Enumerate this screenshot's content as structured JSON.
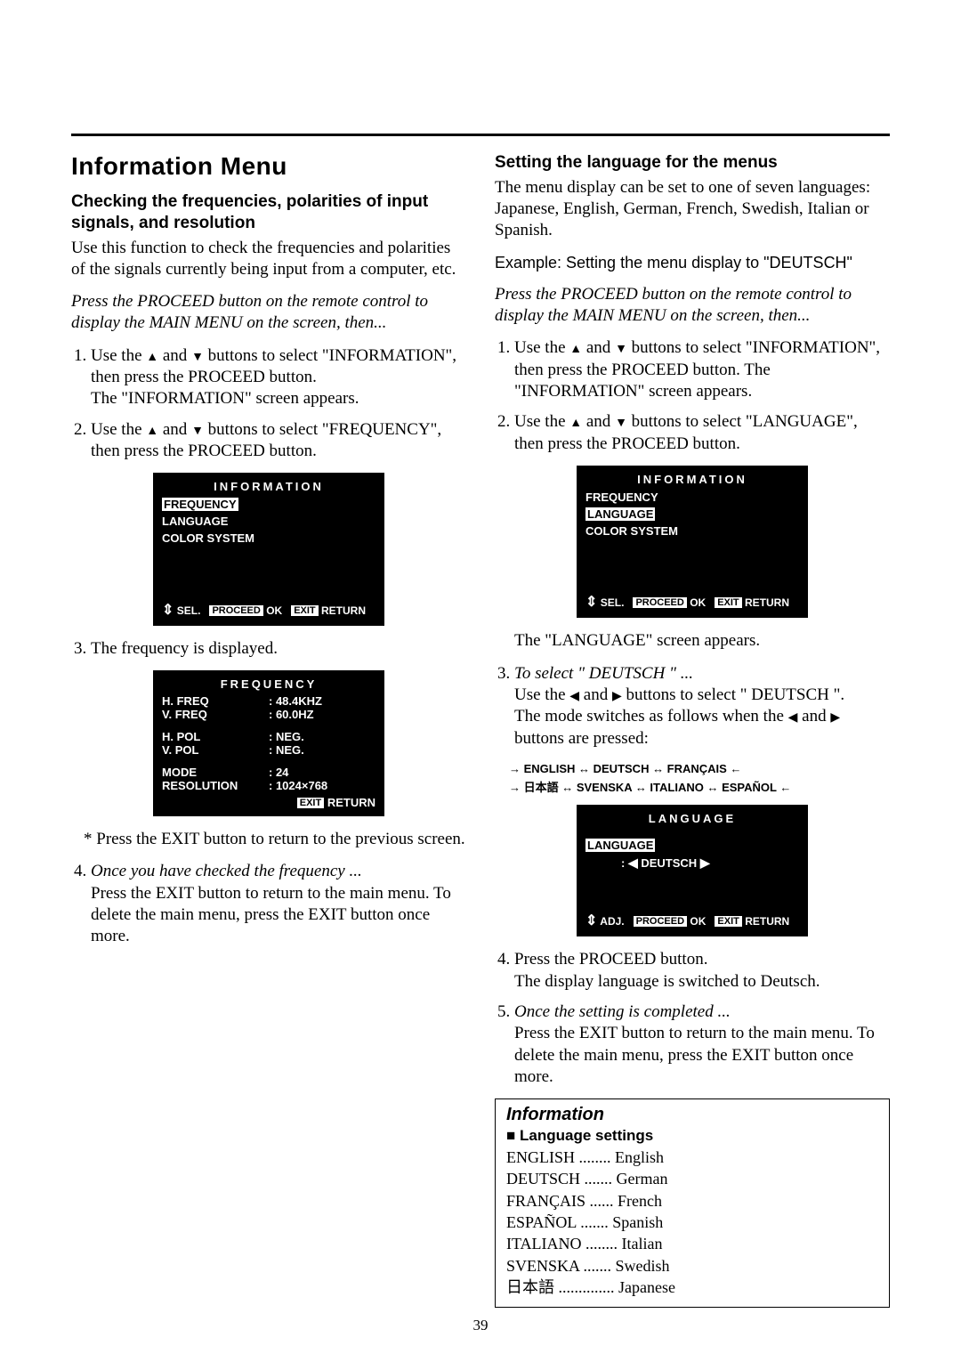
{
  "page_number": "39",
  "left": {
    "h_main": "Information Menu",
    "h_sub": "Checking the frequencies, polarities of input signals, and resolution",
    "intro": "Use this function to check the frequencies and polarities of the signals currently being input from a computer, etc.",
    "press_proceed": "Press the PROCEED button on the remote control to display the MAIN MENU on the screen, then...",
    "step1_a": "Use the ",
    "step1_b": " and ",
    "step1_c": " buttons to select \"INFORMATION\", then press the PROCEED button.",
    "step1_d": "The \"INFORMATION\" screen appears.",
    "step2_a": "Use the ",
    "step2_b": " and ",
    "step2_c": " buttons to select \"FREQUENCY\", then press the PROCEED button.",
    "osd1": {
      "title": "INFORMATION",
      "items": [
        "FREQUENCY",
        "LANGUAGE",
        "COLOR SYSTEM"
      ],
      "highlight_index": 0,
      "footer_sel": "SEL.",
      "footer_proceed": "PROCEED",
      "footer_ok": "OK",
      "footer_exit": "EXIT",
      "footer_return": "RETURN"
    },
    "step3": "The frequency is displayed.",
    "osd_freq": {
      "title": "FREQUENCY",
      "rows": [
        {
          "lab": "H. FREQ",
          "val": "48.4KHZ"
        },
        {
          "lab": "V. FREQ",
          "val": "60.0HZ"
        }
      ],
      "rows2": [
        {
          "lab": "H. POL",
          "val": "NEG."
        },
        {
          "lab": "V. POL",
          "val": "NEG."
        }
      ],
      "rows3": [
        {
          "lab": "MODE",
          "val": "24"
        },
        {
          "lab": "RESOLUTION",
          "val": "1024×768"
        }
      ],
      "exit": "EXIT",
      "return": "RETURN"
    },
    "note_exit": "* Press the EXIT button to return to the previous screen.",
    "step4_title": "Once you have checked the frequency ...",
    "step4_body": "Press the EXIT button to return to the main menu. To delete the main menu, press the EXIT button once more."
  },
  "right": {
    "h_sub": "Setting the language for the menus",
    "intro": "The menu display can be set to one of seven languages: Japanese, English, German, French, Swedish, Italian or Spanish.",
    "example": "Example: Setting the menu display to \"DEUTSCH\"",
    "press_proceed": "Press the PROCEED button on the remote control to display the MAIN MENU on the screen, then...",
    "step1_a": "Use the ",
    "step1_b": " and ",
    "step1_c": " buttons to select \"INFORMATION\", then press the PROCEED button. The \"INFORMATION\" screen appears.",
    "step2_a": "Use the ",
    "step2_b": " and ",
    "step2_c": " buttons to select \"LANGUAGE\", then press the PROCEED button.",
    "osd1": {
      "title": "INFORMATION",
      "items": [
        "FREQUENCY",
        "LANGUAGE",
        "COLOR SYSTEM"
      ],
      "highlight_index": 1,
      "footer_sel": "SEL.",
      "footer_proceed": "PROCEED",
      "footer_ok": "OK",
      "footer_exit": "EXIT",
      "footer_return": "RETURN"
    },
    "after_osd1": "The \"LANGUAGE\" screen appears.",
    "step3_title": "To select \" DEUTSCH \" ...",
    "step3_a": "Use the ",
    "step3_b": " and ",
    "step3_c": " buttons to select \" DEUTSCH \".",
    "step3_d_a": "The mode switches as follows when the ",
    "step3_d_b": " and ",
    "step3_d_c": " buttons are pressed:",
    "flow_line1": "→ ENGLISH ↔ DEUTSCH ↔ FRANÇAIS ←",
    "flow_line2": "→ 日本語 ↔ SVENSKA ↔ ITALIANO ↔ ESPAÑOL ←",
    "osd_lang": {
      "title": "LANGUAGE",
      "label": "LANGUAGE",
      "value": "DEUTSCH",
      "footer_adj": "ADJ.",
      "footer_proceed": "PROCEED",
      "footer_ok": "OK",
      "footer_exit": "EXIT",
      "footer_return": "RETURN"
    },
    "step4": "Press the PROCEED button.",
    "step4b": "The display language is switched to Deutsch.",
    "step5_title": "Once the setting is completed ...",
    "step5_body": "Press the EXIT button to return to the main menu. To delete the main menu, press the EXIT button once more.",
    "info_box": {
      "title": "Information",
      "sub": "Language settings",
      "rows": [
        {
          "k": "ENGLISH",
          "d": "........",
          "v": "English"
        },
        {
          "k": "DEUTSCH",
          "d": ".......",
          "v": "German"
        },
        {
          "k": "FRANÇAIS",
          "d": "......",
          "v": " French"
        },
        {
          "k": "ESPAÑOL",
          "d": ".......",
          "v": "Spanish"
        },
        {
          "k": "ITALIANO",
          "d": "........",
          "v": " Italian"
        },
        {
          "k": "SVENSKA",
          "d": ".......",
          "v": "Swedish"
        },
        {
          "k": "日本語",
          "d": "..............",
          "v": "Japanese"
        }
      ]
    }
  }
}
